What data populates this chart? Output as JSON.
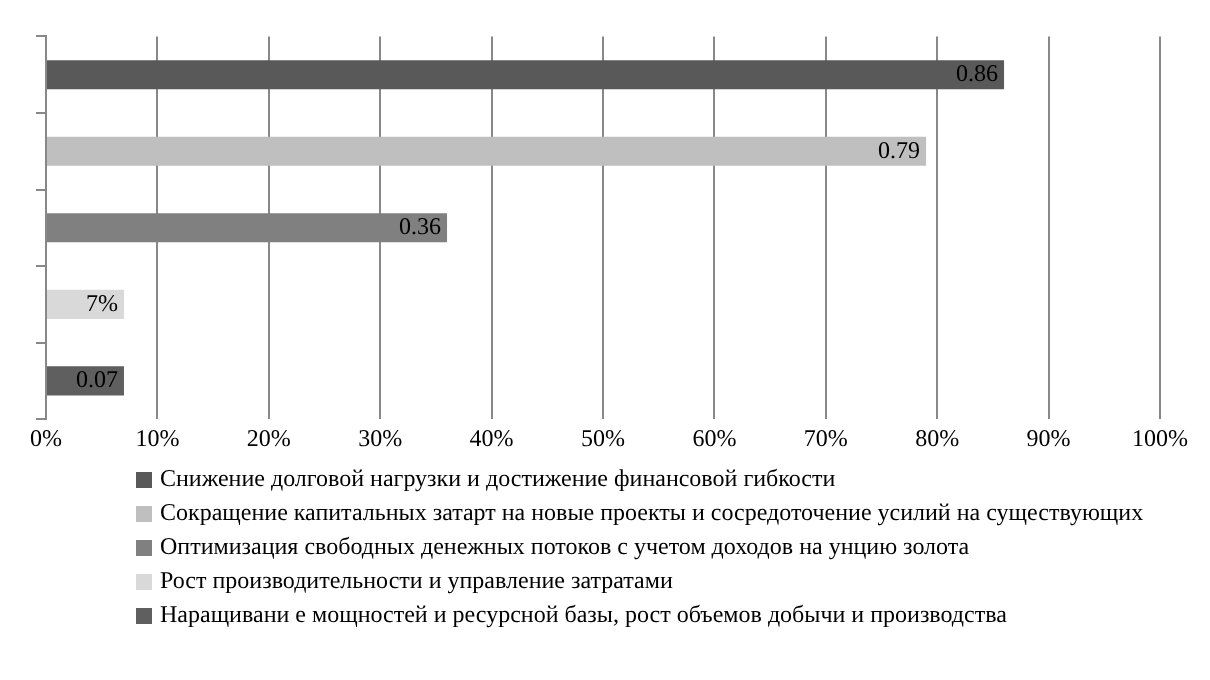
{
  "chart_data": {
    "type": "bar",
    "orientation": "horizontal",
    "categories": [
      null,
      null,
      null,
      null,
      null
    ],
    "series": [
      {
        "name": "Снижение долговой нагрузки и достижение финансовой гибкости",
        "color": "#595959",
        "values": [
          0.86,
          null,
          null,
          null,
          null
        ],
        "value_labels": [
          "0.86",
          null,
          null,
          null,
          null
        ]
      },
      {
        "name": "Сокращение капитальных затарт на новые проекты и сосредоточение усилий на существующих",
        "color": "#bfbfbf",
        "values": [
          null,
          0.79,
          null,
          null,
          null
        ],
        "value_labels": [
          null,
          "0.79",
          null,
          null,
          null
        ]
      },
      {
        "name": "Оптимизация свободных денежных потоков с учетом доходов на унцию золота",
        "color": "#808080",
        "values": [
          null,
          null,
          0.36,
          null,
          null
        ],
        "value_labels": [
          null,
          null,
          "0.36",
          null,
          null
        ]
      },
      {
        "name": "Рост производительности и управление затратами",
        "color": "#d9d9d9",
        "values": [
          null,
          null,
          null,
          0.07,
          null
        ],
        "value_labels": [
          null,
          null,
          null,
          "7%",
          null
        ]
      },
      {
        "name": "Наращивани е мощностей и ресурсной базы, рост объемов добычи и производства",
        "color": "#5f5f5f",
        "values": [
          null,
          null,
          null,
          null,
          0.07
        ],
        "value_labels": [
          null,
          null,
          null,
          null,
          "0.07"
        ]
      }
    ],
    "xlim": [
      0,
      1
    ],
    "xticks": [
      {
        "value": 0,
        "label": "0%"
      },
      {
        "value": 0.1,
        "label": "10%"
      },
      {
        "value": 0.2,
        "label": "20%"
      },
      {
        "value": 0.3,
        "label": "30%"
      },
      {
        "value": 0.4,
        "label": "40%"
      },
      {
        "value": 0.5,
        "label": "50%"
      },
      {
        "value": 0.6,
        "label": "60%"
      },
      {
        "value": 0.7,
        "label": "70%"
      },
      {
        "value": 0.8,
        "label": "80%"
      },
      {
        "value": 0.9,
        "label": "90%"
      },
      {
        "value": 1,
        "label": "100%"
      }
    ],
    "grid": "x",
    "legend": "bottom"
  }
}
